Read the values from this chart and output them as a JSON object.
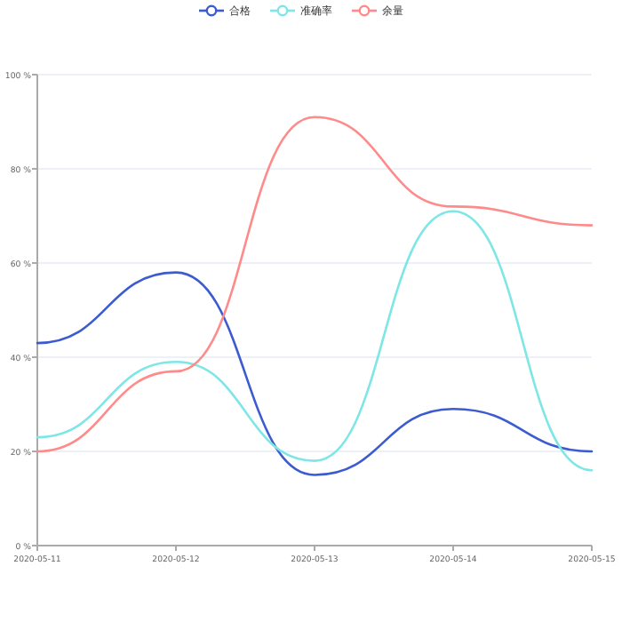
{
  "chart_data": {
    "type": "line",
    "categories": [
      "2020-05-11",
      "2020-05-12",
      "2020-05-13",
      "2020-05-14",
      "2020-05-15"
    ],
    "series": [
      {
        "name": "合格",
        "color": "#3d5bd0",
        "values": [
          43,
          58,
          15,
          29,
          20
        ]
      },
      {
        "name": "准确率",
        "color": "#7ee6e6",
        "values": [
          23,
          39,
          18,
          71,
          16
        ]
      },
      {
        "name": "余量",
        "color": "#ff8a8a",
        "values": [
          20,
          37,
          91,
          72,
          68
        ]
      }
    ],
    "ylim": [
      0,
      100
    ],
    "yticks": [
      {
        "value": 0,
        "label": "0 %"
      },
      {
        "value": 20,
        "label": "20 %"
      },
      {
        "value": 40,
        "label": "40 %"
      },
      {
        "value": 60,
        "label": "60 %"
      },
      {
        "value": 80,
        "label": "80 %"
      },
      {
        "value": 100,
        "label": "100 %"
      }
    ],
    "grid": "y",
    "legend": "top",
    "marker": "none",
    "line_style": "solid"
  }
}
